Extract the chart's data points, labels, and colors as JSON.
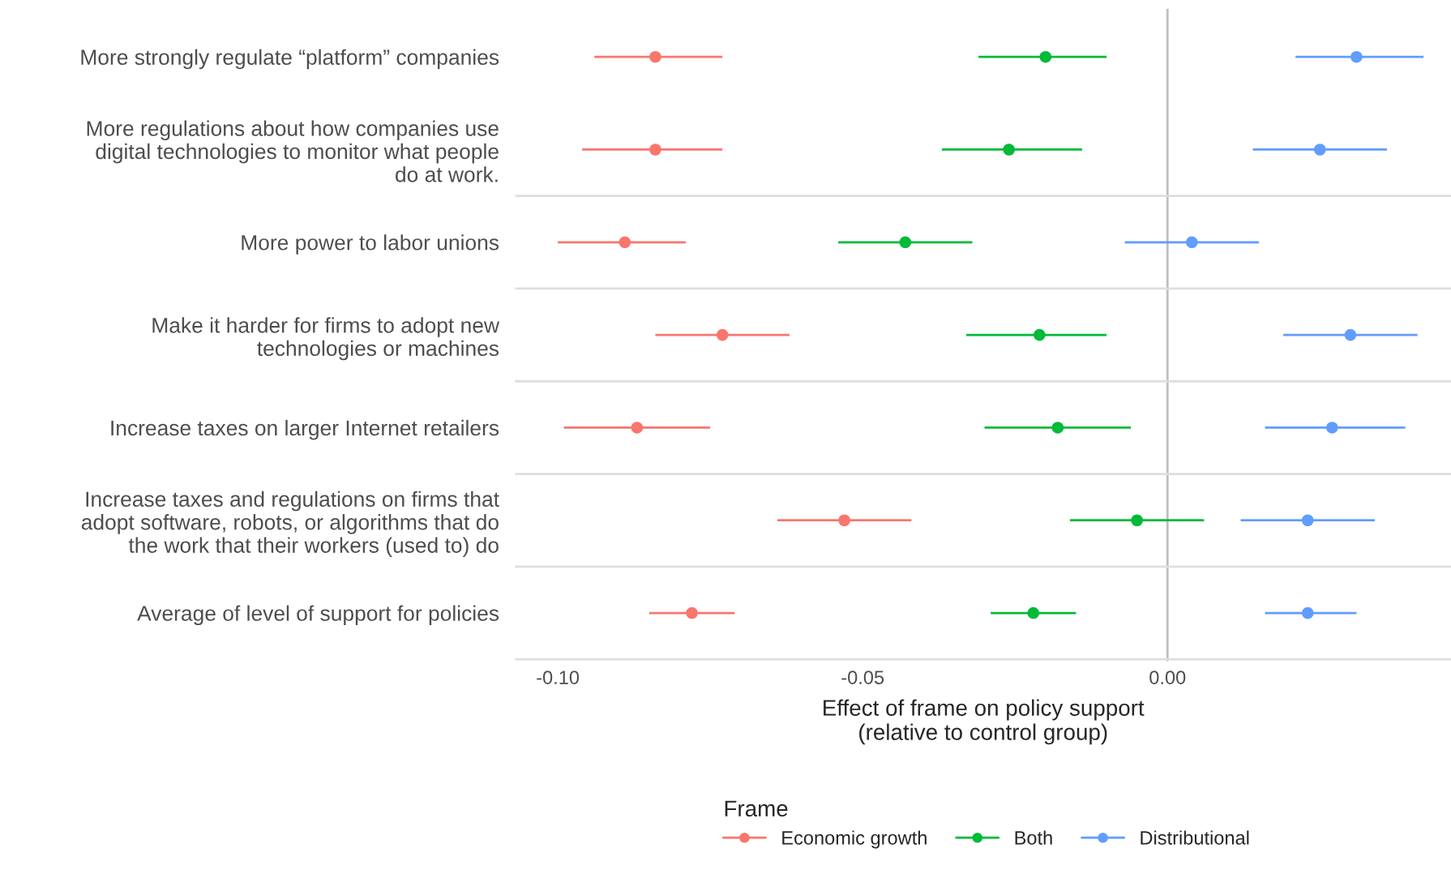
{
  "chart_data": {
    "type": "scatter",
    "orientation": "horizontal",
    "categories": [
      "More strongly regulate “platform” companies",
      "More regulations about how companies use\ndigital technologies to monitor what people\ndo at work.",
      "More power to labor unions",
      "Make it harder for firms to adopt new\ntechnologies or machines",
      "Increase taxes on larger Internet retailers",
      "Increase taxes and regulations on firms that\nadopt software, robots, or algorithms that do\nthe work that their workers (used to) do",
      "Average of level of support for policies"
    ],
    "series": [
      {
        "name": "Economic growth",
        "color": "#f8766d",
        "values": [
          -0.084,
          -0.084,
          -0.089,
          -0.073,
          -0.087,
          -0.053,
          -0.078
        ],
        "errors": [
          [
            -0.094,
            -0.073
          ],
          [
            -0.096,
            -0.073
          ],
          [
            -0.1,
            -0.079
          ],
          [
            -0.084,
            -0.062
          ],
          [
            -0.099,
            -0.075
          ],
          [
            -0.064,
            -0.042
          ],
          [
            -0.085,
            -0.071
          ]
        ]
      },
      {
        "name": "Both",
        "color": "#00ba38",
        "values": [
          -0.02,
          -0.026,
          -0.043,
          -0.021,
          -0.018,
          -0.005,
          -0.022
        ],
        "errors": [
          [
            -0.031,
            -0.01
          ],
          [
            -0.037,
            -0.014
          ],
          [
            -0.054,
            -0.032
          ],
          [
            -0.033,
            -0.01
          ],
          [
            -0.03,
            -0.006
          ],
          [
            -0.016,
            0.006
          ],
          [
            -0.029,
            -0.015
          ]
        ]
      },
      {
        "name": "Distributional",
        "color": "#619cff",
        "values": [
          0.031,
          0.025,
          0.004,
          0.03,
          0.027,
          0.023,
          0.023
        ],
        "errors": [
          [
            0.021,
            0.042
          ],
          [
            0.014,
            0.036
          ],
          [
            -0.007,
            0.015
          ],
          [
            0.019,
            0.041
          ],
          [
            0.016,
            0.039
          ],
          [
            0.012,
            0.034
          ],
          [
            0.016,
            0.031
          ]
        ]
      }
    ],
    "xlim": [
      -0.107,
      0.0465
    ],
    "xticks": [
      {
        "value": -0.1,
        "label": "-0.10"
      },
      {
        "value": -0.05,
        "label": "-0.05"
      },
      {
        "value": 0,
        "label": "0.00"
      }
    ],
    "xlabel": "Effect of frame on policy support\n(relative to control group)",
    "legend_title": "Frame",
    "legend": "bottom",
    "marker": "circle",
    "ref_lines": [
      {
        "axis": "x",
        "value": 0,
        "color": "#bebebe"
      }
    ]
  }
}
